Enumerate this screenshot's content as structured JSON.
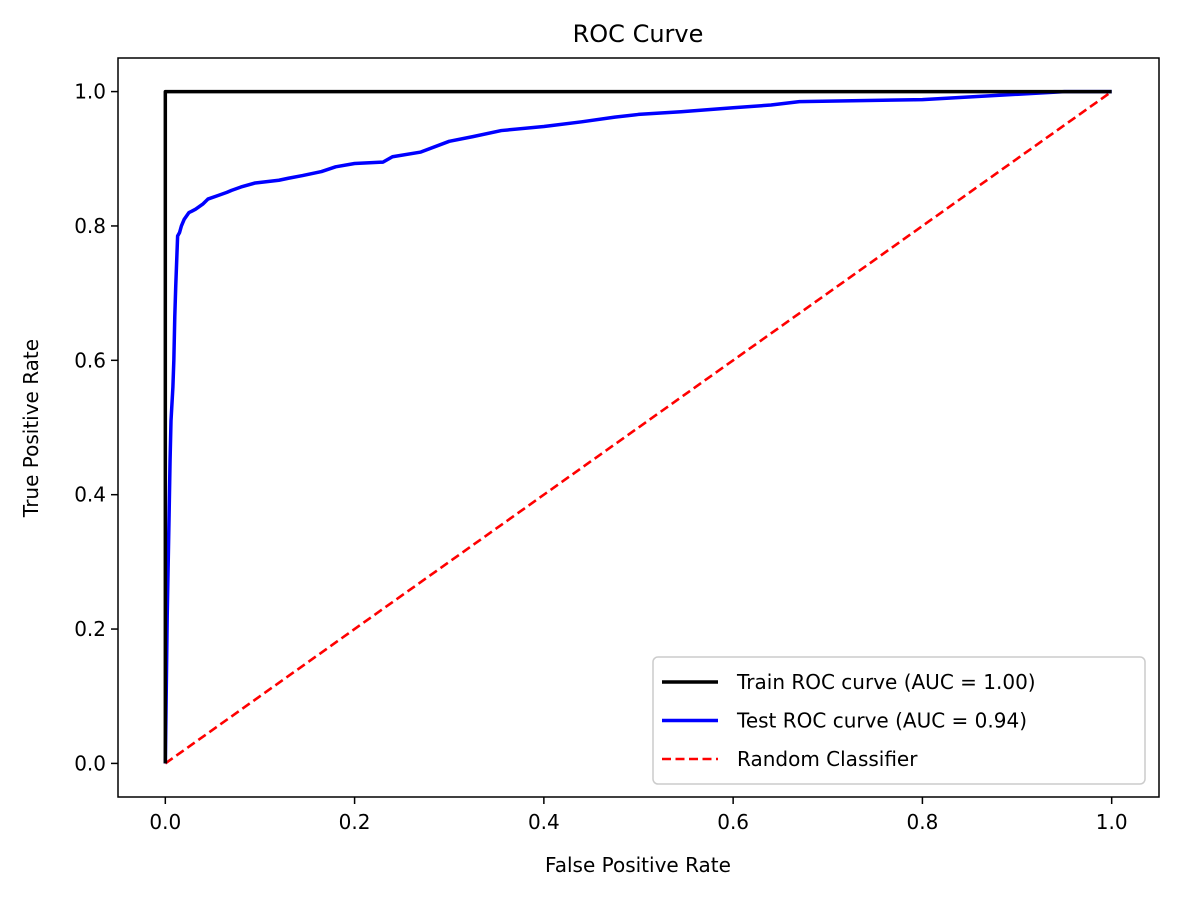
{
  "chart_data": {
    "type": "line",
    "title": "ROC Curve",
    "xlabel": "False Positive Rate",
    "ylabel": "True Positive Rate",
    "xlim": [
      -0.05,
      1.05
    ],
    "ylim": [
      -0.05,
      1.05
    ],
    "xticks": [
      0.0,
      0.2,
      0.4,
      0.6,
      0.8,
      1.0
    ],
    "xtick_labels": [
      "0.0",
      "0.2",
      "0.4",
      "0.6",
      "0.8",
      "1.0"
    ],
    "yticks": [
      0.0,
      0.2,
      0.4,
      0.6,
      0.8,
      1.0
    ],
    "ytick_labels": [
      "0.0",
      "0.2",
      "0.4",
      "0.6",
      "0.8",
      "1.0"
    ],
    "grid": false,
    "legend_position": "lower-right",
    "series": [
      {
        "name": "Train ROC curve (AUC = 1.00)",
        "color": "#000000",
        "style": "solid",
        "x": [
          0.0,
          0.0,
          1.0
        ],
        "y": [
          0.0,
          1.0,
          1.0
        ]
      },
      {
        "name": "Test ROC curve (AUC = 0.94)",
        "color": "#0000ff",
        "style": "solid",
        "x": [
          0.0,
          0.002,
          0.004,
          0.005,
          0.006,
          0.008,
          0.009,
          0.01,
          0.011,
          0.013,
          0.015,
          0.017,
          0.02,
          0.025,
          0.028,
          0.032,
          0.04,
          0.045,
          0.055,
          0.065,
          0.07,
          0.08,
          0.095,
          0.12,
          0.13,
          0.145,
          0.165,
          0.18,
          0.2,
          0.23,
          0.24,
          0.27,
          0.3,
          0.325,
          0.355,
          0.4,
          0.44,
          0.475,
          0.5,
          0.545,
          0.6,
          0.64,
          0.67,
          0.71,
          0.8,
          0.95,
          1.0
        ],
        "y": [
          0.0,
          0.22,
          0.37,
          0.45,
          0.51,
          0.56,
          0.6,
          0.665,
          0.71,
          0.785,
          0.79,
          0.8,
          0.81,
          0.82,
          0.822,
          0.825,
          0.833,
          0.84,
          0.845,
          0.85,
          0.853,
          0.858,
          0.864,
          0.868,
          0.871,
          0.875,
          0.881,
          0.888,
          0.893,
          0.895,
          0.903,
          0.91,
          0.926,
          0.933,
          0.942,
          0.948,
          0.955,
          0.962,
          0.966,
          0.97,
          0.976,
          0.98,
          0.985,
          0.986,
          0.988,
          1.0,
          1.0
        ]
      },
      {
        "name": "Random Classifier",
        "color": "#ff0000",
        "style": "dashed",
        "x": [
          0.0,
          1.0
        ],
        "y": [
          0.0,
          1.0
        ]
      }
    ]
  }
}
